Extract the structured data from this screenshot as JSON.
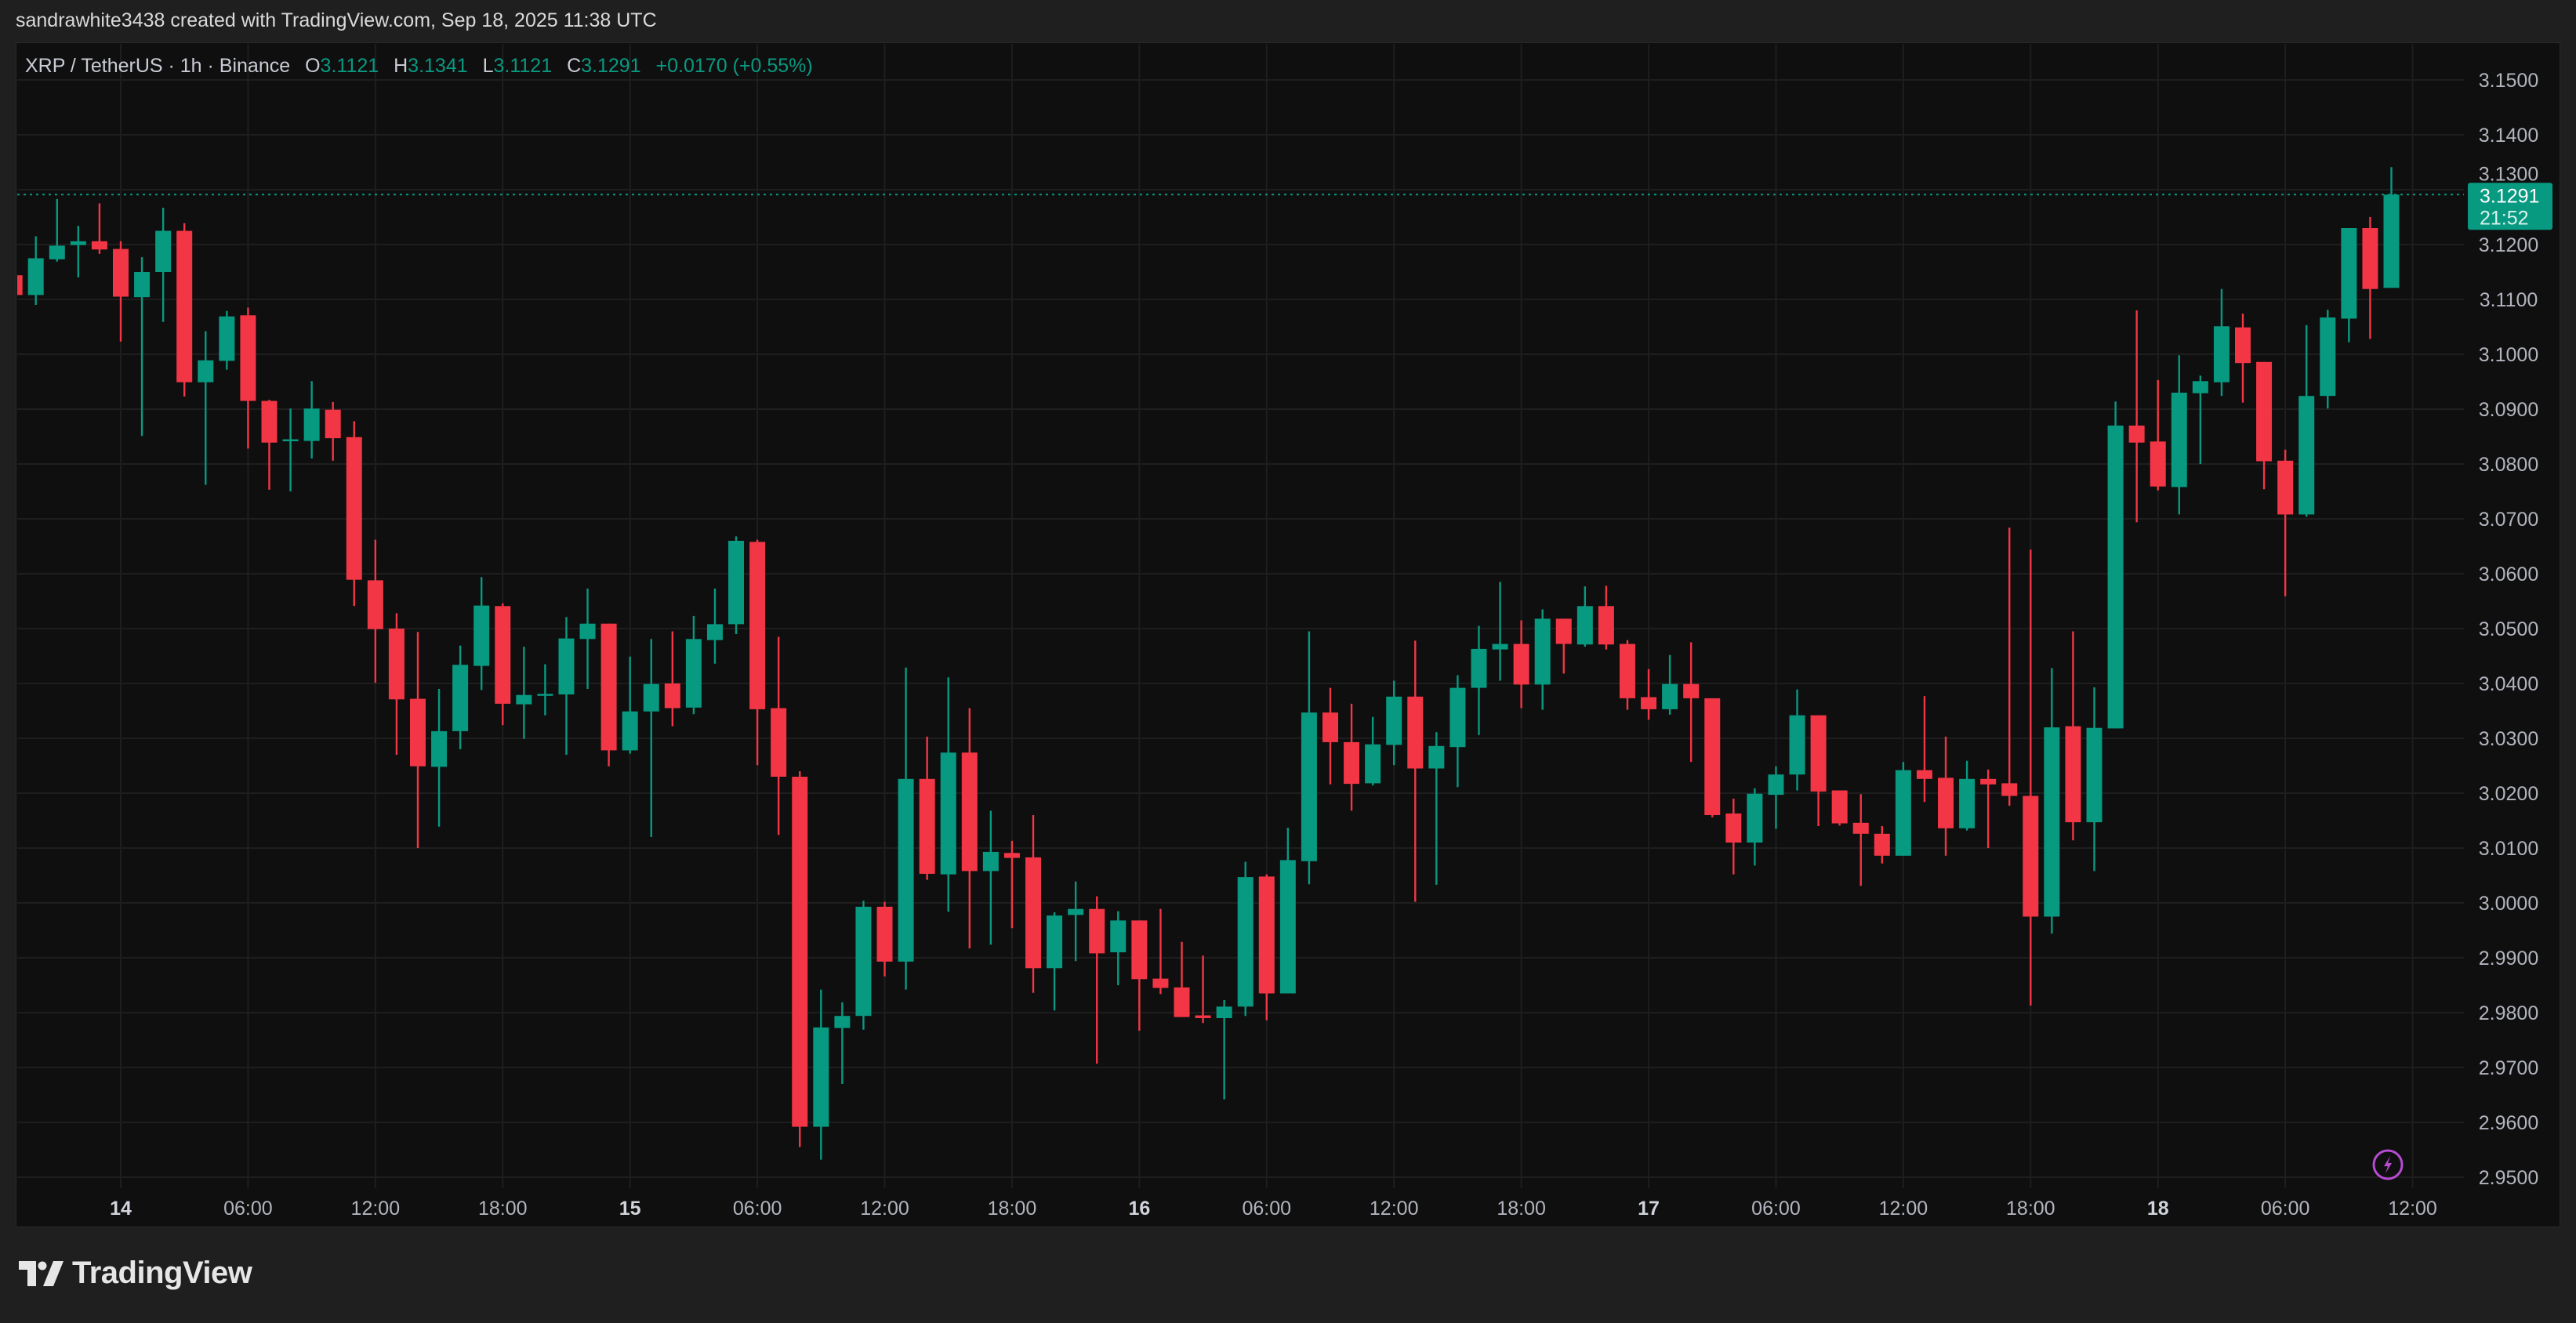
{
  "credit": "sandrawhite3438 created with TradingView.com, Sep 18, 2025 11:38 UTC",
  "legend": {
    "symbol": "XRP / TetherUS · 1h · Binance",
    "o_label": "O",
    "o": "3.1121",
    "h_label": "H",
    "h": "3.1341",
    "l_label": "L",
    "l": "3.1121",
    "c_label": "C",
    "c": "3.1291",
    "change": "+0.0170 (+0.55%)"
  },
  "last_price": {
    "value": "3.1291",
    "countdown": "21:52"
  },
  "footer": {
    "brand": "TradingView"
  },
  "colors": {
    "up": "#089981",
    "down": "#f23645",
    "background": "#0f0f0f",
    "grid": "#1e1e1e",
    "axis_text": "#b2b5be",
    "alert_icon": "#b84bd3"
  },
  "icons": {
    "alert": "lightning-icon",
    "logo": "tradingview-logo"
  },
  "chart_data": {
    "type": "candlestick",
    "interval": "1h",
    "start": "2025-09-13 19:00",
    "ylim": [
      2.945,
      3.157
    ],
    "grid": true,
    "y_ticks": [
      "3.1500",
      "3.1400",
      "3.1300",
      "3.1200",
      "3.1100",
      "3.1000",
      "3.0900",
      "3.0800",
      "3.0700",
      "3.0600",
      "3.0500",
      "3.0400",
      "3.0300",
      "3.0200",
      "3.0100",
      "3.0000",
      "2.9900",
      "2.9800",
      "2.9700",
      "2.9600",
      "2.9500"
    ],
    "x_ticks": [
      "14",
      "06:00",
      "12:00",
      "18:00",
      "15",
      "06:00",
      "12:00",
      "18:00",
      "16",
      "06:00",
      "12:00",
      "18:00",
      "17",
      "06:00",
      "12:00",
      "18:00",
      "18",
      "06:00",
      "12:00"
    ],
    "ohlc": [
      [
        3.1144,
        3.1146,
        3.1106,
        3.1108
      ],
      [
        3.1108,
        3.1215,
        3.109,
        3.1175
      ],
      [
        3.1173,
        3.1283,
        3.1169,
        3.1198
      ],
      [
        3.1199,
        3.1234,
        3.114,
        3.1206
      ],
      [
        3.1206,
        3.1275,
        3.1183,
        3.1191
      ],
      [
        3.1192,
        3.1206,
        3.1023,
        3.1105
      ],
      [
        3.1104,
        3.1177,
        3.0851,
        3.115
      ],
      [
        3.115,
        3.1267,
        3.1059,
        3.1225
      ],
      [
        3.1225,
        3.1239,
        3.0923,
        3.0949
      ],
      [
        3.0949,
        3.1042,
        3.0762,
        3.0989
      ],
      [
        3.0988,
        3.1079,
        3.0972,
        3.1069
      ],
      [
        3.1071,
        3.1085,
        3.0828,
        3.0915
      ],
      [
        3.0915,
        3.0917,
        3.0753,
        3.0839
      ],
      [
        3.0843,
        3.0901,
        3.075,
        3.0845
      ],
      [
        3.0842,
        3.0951,
        3.081,
        3.0901
      ],
      [
        3.0899,
        3.0913,
        3.0806,
        3.0847
      ],
      [
        3.0849,
        3.0878,
        3.0541,
        3.0589
      ],
      [
        3.0588,
        3.0662,
        3.0401,
        3.0499
      ],
      [
        3.05,
        3.0528,
        3.027,
        3.0371
      ],
      [
        3.0372,
        3.0494,
        3.01,
        3.0249
      ],
      [
        3.0248,
        3.039,
        3.0139,
        3.0313
      ],
      [
        3.0313,
        3.0469,
        3.028,
        3.0434
      ],
      [
        3.0432,
        3.0594,
        3.0388,
        3.0542
      ],
      [
        3.0541,
        3.0546,
        3.0324,
        3.0363
      ],
      [
        3.0362,
        3.0467,
        3.0299,
        3.0379
      ],
      [
        3.038,
        3.0435,
        3.0342,
        3.0381
      ],
      [
        3.038,
        3.0521,
        3.027,
        3.0482
      ],
      [
        3.0481,
        3.0573,
        3.039,
        3.0509
      ],
      [
        3.0509,
        3.0509,
        3.0249,
        3.0278
      ],
      [
        3.0278,
        3.0449,
        3.0272,
        3.0349
      ],
      [
        3.0349,
        3.0481,
        3.012,
        3.0399
      ],
      [
        3.04,
        3.0495,
        3.0322,
        3.0355
      ],
      [
        3.0356,
        3.0523,
        3.0344,
        3.0481
      ],
      [
        3.0479,
        3.0573,
        3.0436,
        3.0508
      ],
      [
        3.0508,
        3.0668,
        3.049,
        3.066
      ],
      [
        3.0658,
        3.0662,
        3.0251,
        3.0353
      ],
      [
        3.0355,
        3.0485,
        3.0124,
        3.023
      ],
      [
        3.023,
        3.024,
        2.9555,
        2.9592
      ],
      [
        2.9592,
        2.9842,
        2.9532,
        2.9773
      ],
      [
        2.9772,
        2.9819,
        2.967,
        2.9794
      ],
      [
        2.9794,
        3.0004,
        2.9769,
        2.9993
      ],
      [
        2.9993,
        3.0002,
        2.9866,
        2.9893
      ],
      [
        2.9893,
        3.0429,
        2.9842,
        3.0226
      ],
      [
        3.0226,
        3.0303,
        3.0042,
        3.0053
      ],
      [
        3.0052,
        3.0411,
        2.9984,
        3.0274
      ],
      [
        3.0274,
        3.0355,
        2.9917,
        3.0058
      ],
      [
        3.0058,
        3.0168,
        2.9924,
        3.0093
      ],
      [
        3.0091,
        3.0113,
        2.9954,
        3.0082
      ],
      [
        3.0083,
        3.016,
        2.9836,
        2.9881
      ],
      [
        2.9881,
        2.9983,
        2.9804,
        2.9977
      ],
      [
        2.9978,
        3.0039,
        2.9894,
        2.9989
      ],
      [
        2.9989,
        3.0012,
        2.9707,
        2.9908
      ],
      [
        2.991,
        2.9985,
        2.985,
        2.9968
      ],
      [
        2.9968,
        2.9968,
        2.9767,
        2.9861
      ],
      [
        2.9862,
        2.9989,
        2.9834,
        2.9845
      ],
      [
        2.9846,
        2.9929,
        2.9792,
        2.9792
      ],
      [
        2.9795,
        2.9904,
        2.9781,
        2.979
      ],
      [
        2.979,
        2.9823,
        2.9642,
        2.9811
      ],
      [
        2.9811,
        3.0075,
        2.9794,
        3.0047
      ],
      [
        3.0048,
        3.0052,
        2.9786,
        2.9835
      ],
      [
        2.9835,
        3.0137,
        2.9835,
        3.0078
      ],
      [
        3.0076,
        3.0495,
        3.0034,
        3.0347
      ],
      [
        3.0347,
        3.0392,
        3.0216,
        3.0293
      ],
      [
        3.0293,
        3.0363,
        3.0168,
        3.0217
      ],
      [
        3.0218,
        3.0339,
        3.0214,
        3.0289
      ],
      [
        3.0288,
        3.0405,
        3.0251,
        3.0376
      ],
      [
        3.0376,
        3.0478,
        3.0002,
        3.0245
      ],
      [
        3.0245,
        3.0311,
        3.0033,
        3.0286
      ],
      [
        3.0284,
        3.0415,
        3.0211,
        3.0392
      ],
      [
        3.0392,
        3.0505,
        3.0306,
        3.0463
      ],
      [
        3.0462,
        3.0585,
        3.0405,
        3.0472
      ],
      [
        3.0472,
        3.0515,
        3.0355,
        3.0398
      ],
      [
        3.0398,
        3.0535,
        3.0352,
        3.0518
      ],
      [
        3.0518,
        3.0518,
        3.0418,
        3.0472
      ],
      [
        3.0471,
        3.0577,
        3.0467,
        3.0541
      ],
      [
        3.0541,
        3.0578,
        3.0462,
        3.0471
      ],
      [
        3.0472,
        3.0479,
        3.0352,
        3.0373
      ],
      [
        3.0375,
        3.0426,
        3.0334,
        3.0353
      ],
      [
        3.0353,
        3.0452,
        3.0343,
        3.0399
      ],
      [
        3.0399,
        3.0475,
        3.0257,
        3.0373
      ],
      [
        3.0373,
        3.0373,
        3.0156,
        3.016
      ],
      [
        3.0163,
        3.019,
        3.0052,
        3.011
      ],
      [
        3.011,
        3.0209,
        3.0068,
        3.0199
      ],
      [
        3.0197,
        3.0249,
        3.0135,
        3.0234
      ],
      [
        3.0234,
        3.0389,
        3.0205,
        3.0342
      ],
      [
        3.0342,
        3.0342,
        3.014,
        3.0203
      ],
      [
        3.0205,
        3.0205,
        3.0141,
        3.0145
      ],
      [
        3.0146,
        3.0198,
        3.0031,
        3.0126
      ],
      [
        3.0126,
        3.014,
        3.0072,
        3.0086
      ],
      [
        3.0086,
        3.0257,
        3.0086,
        3.0242
      ],
      [
        3.0242,
        3.0377,
        3.0184,
        3.0226
      ],
      [
        3.0228,
        3.0303,
        3.0086,
        3.0136
      ],
      [
        3.0136,
        3.0259,
        3.0132,
        3.0226
      ],
      [
        3.0226,
        3.0243,
        3.01,
        3.0216
      ],
      [
        3.0218,
        3.0684,
        3.0177,
        3.0195
      ],
      [
        3.0195,
        3.0644,
        2.9813,
        2.9975
      ],
      [
        2.9975,
        3.0428,
        2.9944,
        3.032
      ],
      [
        3.0322,
        3.0495,
        3.0114,
        3.0147
      ],
      [
        3.0147,
        3.0393,
        3.0058,
        3.0319
      ],
      [
        3.0318,
        3.0914,
        3.0318,
        3.087
      ],
      [
        3.087,
        3.108,
        3.0694,
        3.0839
      ],
      [
        3.0841,
        3.0953,
        3.0752,
        3.0759
      ],
      [
        3.0758,
        3.0998,
        3.0708,
        3.093
      ],
      [
        3.0929,
        3.0961,
        3.08,
        3.0951
      ],
      [
        3.0949,
        3.1119,
        3.0924,
        3.1051
      ],
      [
        3.1049,
        3.1074,
        3.0912,
        3.0984
      ],
      [
        3.0986,
        3.0986,
        3.0754,
        3.0805
      ],
      [
        3.0806,
        3.0826,
        3.0559,
        3.0708
      ],
      [
        3.0708,
        3.1053,
        3.0704,
        3.0924
      ],
      [
        3.0924,
        3.1081,
        3.0901,
        3.1067
      ],
      [
        3.1065,
        3.123,
        3.1022,
        3.123
      ],
      [
        3.123,
        3.125,
        3.1028,
        3.1119
      ],
      [
        3.1121,
        3.1341,
        3.1121,
        3.1291
      ]
    ]
  }
}
